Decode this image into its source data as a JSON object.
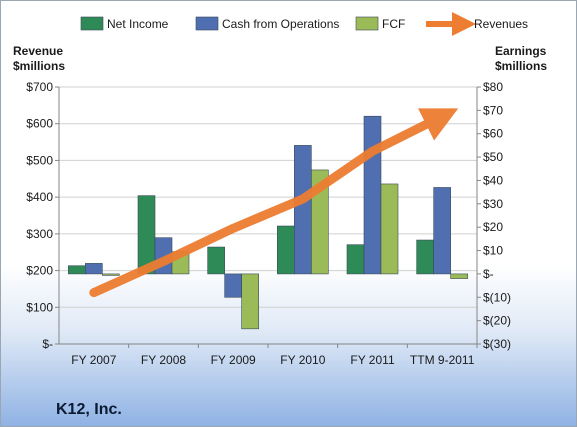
{
  "chart_data": {
    "type": "bar",
    "categories": [
      "FY 2007",
      "FY 2008",
      "FY 2009",
      "FY 2010",
      "FY 2011",
      "TTM 9-2011"
    ],
    "series": [
      {
        "name": "Net Income",
        "axis": "right",
        "color": "#2e8b57",
        "values": [
          3.5,
          33.5,
          11.5,
          20.5,
          12.5,
          14.5
        ]
      },
      {
        "name": "Cash from Operations",
        "axis": "right",
        "color": "#4f6fb0",
        "values": [
          4.5,
          15.5,
          -10,
          55,
          67.5,
          37
        ]
      },
      {
        "name": "FCF",
        "axis": "right",
        "color": "#9bbb59",
        "values": [
          0,
          9.5,
          -23.5,
          44.5,
          38.5,
          -2
        ]
      },
      {
        "name": "Revenues",
        "axis": "left",
        "type": "line",
        "color": "#ed7d31",
        "values": [
          140,
          225,
          315,
          395,
          525,
          620
        ]
      }
    ],
    "left_axis": {
      "title_line1": "Revenue",
      "title_line2": "$millions",
      "min": 0,
      "max": 700,
      "ticks": [
        "$-",
        "$100",
        "$200",
        "$300",
        "$400",
        "$500",
        "$600",
        "$700"
      ]
    },
    "right_axis": {
      "title_line1": "Earnings",
      "title_line2": "$millions",
      "min": -30,
      "max": 80,
      "ticks": [
        "$(30)",
        "$(20)",
        "$(10)",
        "$-",
        "$10",
        "$20",
        "$30",
        "$40",
        "$50",
        "$60",
        "$70",
        "$80"
      ]
    },
    "grid": true,
    "legend_position": "top"
  },
  "company": "K12, Inc."
}
